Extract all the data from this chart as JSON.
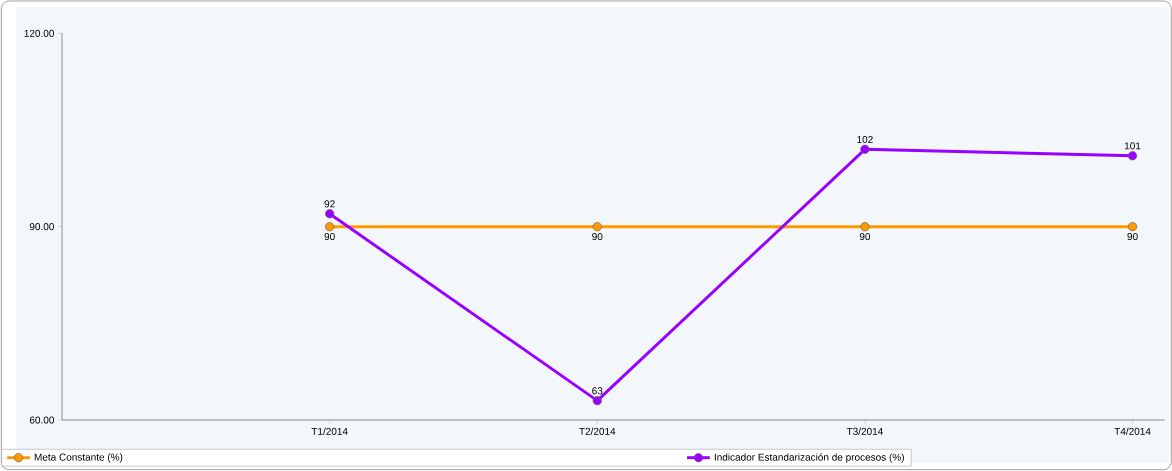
{
  "chart_data": {
    "type": "line",
    "categories": [
      "T1/2014",
      "T2/2014",
      "T3/2014",
      "T4/2014"
    ],
    "series": [
      {
        "name": "Meta Constante (%)",
        "color": "#ff9900",
        "values": [
          90,
          90,
          90,
          90
        ]
      },
      {
        "name": "Indicador Estandarización de procesos (%)",
        "color": "#9900ff",
        "values": [
          92,
          63,
          102,
          101
        ]
      }
    ],
    "ylim": [
      60,
      120
    ],
    "yticks": [
      {
        "value": 60,
        "label": "60.00"
      },
      {
        "value": 90,
        "label": "90.00"
      },
      {
        "value": 120,
        "label": "120.00"
      }
    ],
    "grid": "y",
    "legend": "bottom",
    "marker": "circle",
    "line_style": "solid",
    "data_labels": true
  }
}
